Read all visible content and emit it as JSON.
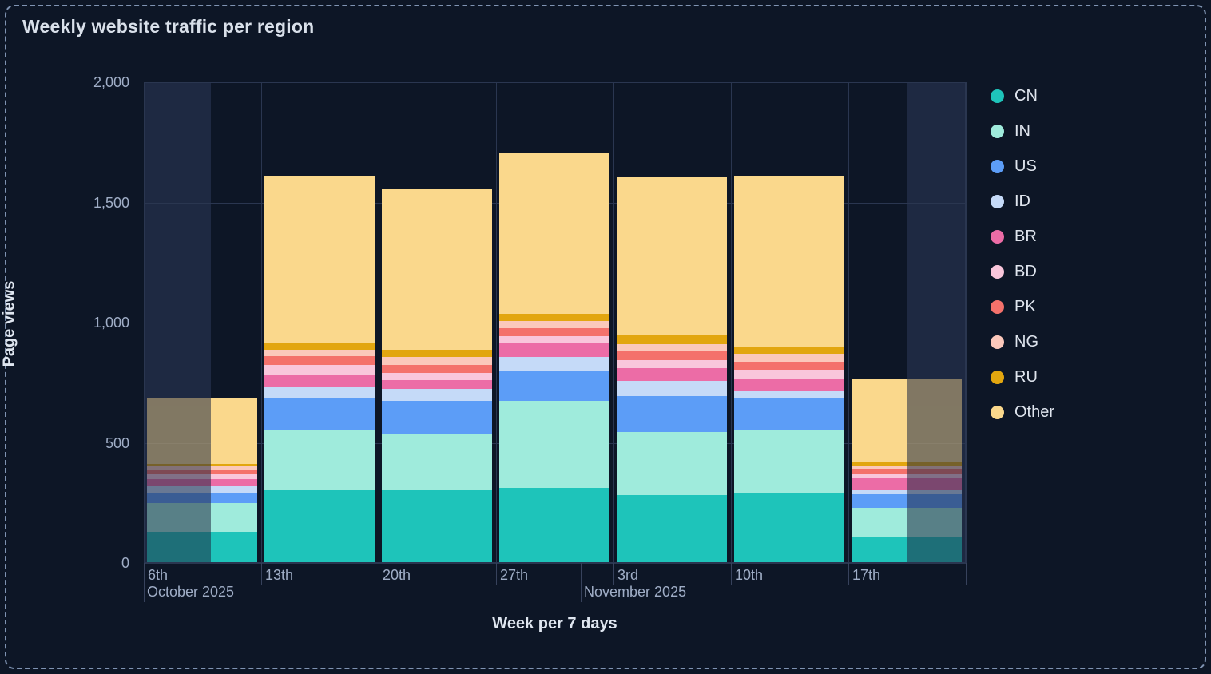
{
  "chart_data": {
    "type": "bar",
    "variant": "stacked",
    "title": "Weekly website traffic per region",
    "xlabel": "Week per 7 days",
    "ylabel": "Page views",
    "ylim": [
      0,
      2000
    ],
    "ytick_values": [
      0,
      500,
      1000,
      1500,
      2000
    ],
    "ytick_labels": [
      "0",
      "500",
      "1,000",
      "1,500",
      "2,000"
    ],
    "categories": [
      "6th",
      "13th",
      "20th",
      "27th",
      "3rd",
      "10th",
      "17th"
    ],
    "month_separators": [
      {
        "label": "October 2025",
        "frac": 0.0
      },
      {
        "label": "November 2025",
        "frac": 0.5316
      }
    ],
    "grid": true,
    "legend_position": "right",
    "series": [
      {
        "name": "CN",
        "color": "#1ec4ba",
        "values": [
          125,
          300,
          300,
          310,
          280,
          290,
          105
        ]
      },
      {
        "name": "IN",
        "color": "#9febdc",
        "values": [
          120,
          250,
          230,
          360,
          260,
          260,
          120
        ]
      },
      {
        "name": "US",
        "color": "#5c9df7",
        "values": [
          45,
          130,
          140,
          123,
          150,
          136,
          56
        ]
      },
      {
        "name": "ID",
        "color": "#c5daf8",
        "values": [
          25,
          50,
          50,
          60,
          63,
          30,
          20
        ]
      },
      {
        "name": "BR",
        "color": "#ec6ca6",
        "values": [
          30,
          50,
          38,
          56,
          56,
          47,
          47
        ]
      },
      {
        "name": "BD",
        "color": "#f9c6db",
        "values": [
          20,
          40,
          30,
          33,
          33,
          37,
          20
        ]
      },
      {
        "name": "PK",
        "color": "#f4716b",
        "values": [
          20,
          38,
          34,
          33,
          37,
          33,
          20
        ]
      },
      {
        "name": "NG",
        "color": "#fbc8bb",
        "values": [
          15,
          25,
          33,
          30,
          27,
          33,
          13
        ]
      },
      {
        "name": "RU",
        "color": "#e2a60f",
        "values": [
          10,
          32,
          30,
          27,
          37,
          30,
          13
        ]
      },
      {
        "name": "Other",
        "color": "#fad88c",
        "values": [
          270,
          690,
          668,
          670,
          660,
          710,
          350
        ]
      }
    ],
    "out_of_range": {
      "left_band_frac": [
        0.0,
        0.0816
      ],
      "right_band_frac": [
        0.9281,
        1.0
      ],
      "faded_bars": [
        {
          "category_index": 0,
          "side": "left",
          "frac": 0.58
        },
        {
          "category_index": 6,
          "side": "right",
          "frac": 0.49
        }
      ]
    }
  }
}
